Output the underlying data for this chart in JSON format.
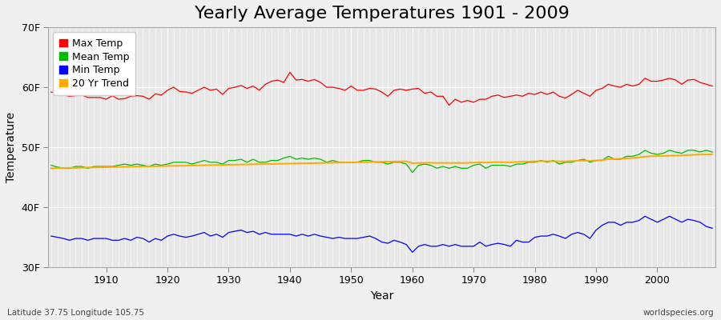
{
  "title": "Yearly Average Temperatures 1901 - 2009",
  "xlabel": "Year",
  "ylabel": "Temperature",
  "years": [
    1901,
    1902,
    1903,
    1904,
    1905,
    1906,
    1907,
    1908,
    1909,
    1910,
    1911,
    1912,
    1913,
    1914,
    1915,
    1916,
    1917,
    1918,
    1919,
    1920,
    1921,
    1922,
    1923,
    1924,
    1925,
    1926,
    1927,
    1928,
    1929,
    1930,
    1931,
    1932,
    1933,
    1934,
    1935,
    1936,
    1937,
    1938,
    1939,
    1940,
    1941,
    1942,
    1943,
    1944,
    1945,
    1946,
    1947,
    1948,
    1949,
    1950,
    1951,
    1952,
    1953,
    1954,
    1955,
    1956,
    1957,
    1958,
    1959,
    1960,
    1961,
    1962,
    1963,
    1964,
    1965,
    1966,
    1967,
    1968,
    1969,
    1970,
    1971,
    1972,
    1973,
    1974,
    1975,
    1976,
    1977,
    1978,
    1979,
    1980,
    1981,
    1982,
    1983,
    1984,
    1985,
    1986,
    1987,
    1988,
    1989,
    1990,
    1991,
    1992,
    1993,
    1994,
    1995,
    1996,
    1997,
    1998,
    1999,
    2000,
    2001,
    2002,
    2003,
    2004,
    2005,
    2006,
    2007,
    2008,
    2009
  ],
  "max_temp": [
    59.2,
    59.0,
    58.7,
    58.5,
    58.6,
    58.7,
    58.3,
    58.3,
    58.3,
    58.0,
    58.6,
    58.0,
    58.1,
    58.5,
    58.6,
    58.5,
    58.0,
    58.9,
    58.7,
    59.5,
    60.0,
    59.3,
    59.2,
    59.0,
    59.5,
    60.0,
    59.5,
    59.7,
    58.8,
    59.8,
    60.0,
    60.3,
    59.8,
    60.2,
    59.5,
    60.5,
    61.0,
    61.2,
    60.8,
    62.5,
    61.2,
    61.3,
    61.0,
    61.3,
    60.8,
    60.0,
    60.0,
    59.8,
    59.5,
    60.2,
    59.5,
    59.5,
    59.8,
    59.7,
    59.2,
    58.5,
    59.5,
    59.7,
    59.5,
    59.7,
    59.8,
    59.0,
    59.2,
    58.5,
    58.5,
    57.0,
    58.0,
    57.5,
    57.8,
    57.5,
    58.0,
    58.0,
    58.5,
    58.7,
    58.3,
    58.5,
    58.7,
    58.5,
    59.0,
    58.8,
    59.2,
    58.8,
    59.2,
    58.5,
    58.2,
    58.8,
    59.5,
    59.0,
    58.5,
    59.5,
    59.8,
    60.5,
    60.2,
    60.0,
    60.5,
    60.2,
    60.5,
    61.5,
    61.0,
    61.0,
    61.2,
    61.5,
    61.2,
    60.5,
    61.2,
    61.3,
    60.8,
    60.5,
    60.2
  ],
  "mean_temp": [
    47.0,
    46.7,
    46.5,
    46.5,
    46.8,
    46.8,
    46.5,
    46.8,
    46.8,
    46.8,
    46.8,
    47.0,
    47.2,
    47.0,
    47.2,
    47.0,
    46.8,
    47.2,
    47.0,
    47.2,
    47.5,
    47.5,
    47.5,
    47.2,
    47.5,
    47.8,
    47.5,
    47.5,
    47.2,
    47.8,
    47.8,
    48.0,
    47.5,
    48.0,
    47.5,
    47.5,
    47.8,
    47.8,
    48.2,
    48.5,
    48.0,
    48.2,
    48.0,
    48.2,
    48.0,
    47.5,
    47.8,
    47.5,
    47.5,
    47.5,
    47.5,
    47.8,
    47.8,
    47.5,
    47.5,
    47.2,
    47.5,
    47.5,
    47.2,
    45.8,
    47.0,
    47.2,
    47.0,
    46.5,
    46.8,
    46.5,
    46.8,
    46.5,
    46.5,
    47.0,
    47.2,
    46.5,
    47.0,
    47.0,
    47.0,
    46.8,
    47.2,
    47.2,
    47.5,
    47.5,
    47.8,
    47.5,
    47.8,
    47.2,
    47.5,
    47.5,
    47.8,
    48.0,
    47.5,
    47.8,
    47.8,
    48.5,
    48.0,
    48.0,
    48.5,
    48.5,
    48.8,
    49.5,
    49.0,
    48.8,
    49.0,
    49.5,
    49.2,
    49.0,
    49.5,
    49.5,
    49.2,
    49.5,
    49.2
  ],
  "min_temp": [
    35.2,
    35.0,
    34.8,
    34.5,
    34.8,
    34.8,
    34.5,
    34.8,
    34.8,
    34.8,
    34.5,
    34.5,
    34.8,
    34.5,
    35.0,
    34.8,
    34.2,
    34.8,
    34.5,
    35.2,
    35.5,
    35.2,
    35.0,
    35.2,
    35.5,
    35.8,
    35.2,
    35.5,
    35.0,
    35.8,
    36.0,
    36.2,
    35.8,
    36.0,
    35.5,
    35.8,
    35.5,
    35.5,
    35.5,
    35.5,
    35.2,
    35.5,
    35.2,
    35.5,
    35.2,
    35.0,
    34.8,
    35.0,
    34.8,
    34.8,
    34.8,
    35.0,
    35.2,
    34.8,
    34.2,
    34.0,
    34.5,
    34.2,
    33.8,
    32.5,
    33.5,
    33.8,
    33.5,
    33.5,
    33.8,
    33.5,
    33.8,
    33.5,
    33.5,
    33.5,
    34.2,
    33.5,
    33.8,
    34.0,
    33.8,
    33.5,
    34.5,
    34.2,
    34.2,
    35.0,
    35.2,
    35.2,
    35.5,
    35.2,
    34.8,
    35.5,
    35.8,
    35.5,
    34.8,
    36.2,
    37.0,
    37.5,
    37.5,
    37.0,
    37.5,
    37.5,
    37.8,
    38.5,
    38.0,
    37.5,
    38.0,
    38.5,
    38.0,
    37.5,
    38.0,
    37.8,
    37.5,
    36.8,
    36.5
  ],
  "trend_values": [
    46.5,
    46.52,
    46.54,
    46.56,
    46.58,
    46.6,
    46.62,
    46.64,
    46.66,
    46.68,
    46.7,
    46.72,
    46.74,
    46.76,
    46.78,
    46.8,
    46.82,
    46.84,
    46.86,
    46.88,
    46.9,
    46.92,
    46.94,
    46.96,
    46.98,
    47.0,
    47.02,
    47.04,
    47.06,
    47.08,
    47.1,
    47.12,
    47.14,
    47.16,
    47.18,
    47.2,
    47.22,
    47.24,
    47.26,
    47.28,
    47.3,
    47.32,
    47.34,
    47.36,
    47.38,
    47.4,
    47.42,
    47.44,
    47.46,
    47.48,
    47.5,
    47.52,
    47.54,
    47.56,
    47.58,
    47.6,
    47.62,
    47.64,
    47.66,
    47.35,
    47.38,
    47.4,
    47.42,
    47.38,
    47.4,
    47.38,
    47.4,
    47.38,
    47.4,
    47.45,
    47.48,
    47.45,
    47.5,
    47.52,
    47.5,
    47.48,
    47.55,
    47.58,
    47.6,
    47.65,
    47.68,
    47.65,
    47.68,
    47.65,
    47.65,
    47.7,
    47.75,
    47.78,
    47.72,
    47.8,
    47.85,
    48.0,
    48.05,
    48.08,
    48.15,
    48.2,
    48.3,
    48.45,
    48.5,
    48.52,
    48.55,
    48.6,
    48.62,
    48.65,
    48.7,
    48.75,
    48.78,
    48.8,
    48.82
  ],
  "outer_bg_color": "#f0f0f0",
  "plot_bg_color": "#e8e8e8",
  "max_color": "#ff0000",
  "mean_color": "#00bb00",
  "min_color": "#0000ff",
  "trend_color": "#ffaa00",
  "grid_color": "#ffffff",
  "spine_color": "#aaaaaa",
  "ylim_min": 30,
  "ylim_max": 70,
  "yticks": [
    30,
    40,
    50,
    60,
    70
  ],
  "ytick_labels": [
    "30F",
    "40F",
    "50F",
    "60F",
    "70F"
  ],
  "xtick_start": 1910,
  "xtick_end": 2001,
  "xtick_step": 10,
  "footnote_left": "Latitude 37.75 Longitude 105.75",
  "footnote_right": "worldspecies.org",
  "title_fontsize": 16,
  "axis_label_fontsize": 10,
  "tick_fontsize": 9,
  "legend_fontsize": 9,
  "legend_entries": [
    "Max Temp",
    "Mean Temp",
    "Min Temp",
    "20 Yr Trend"
  ],
  "legend_colors": [
    "#ff0000",
    "#00bb00",
    "#0000ff",
    "#ffaa00"
  ]
}
